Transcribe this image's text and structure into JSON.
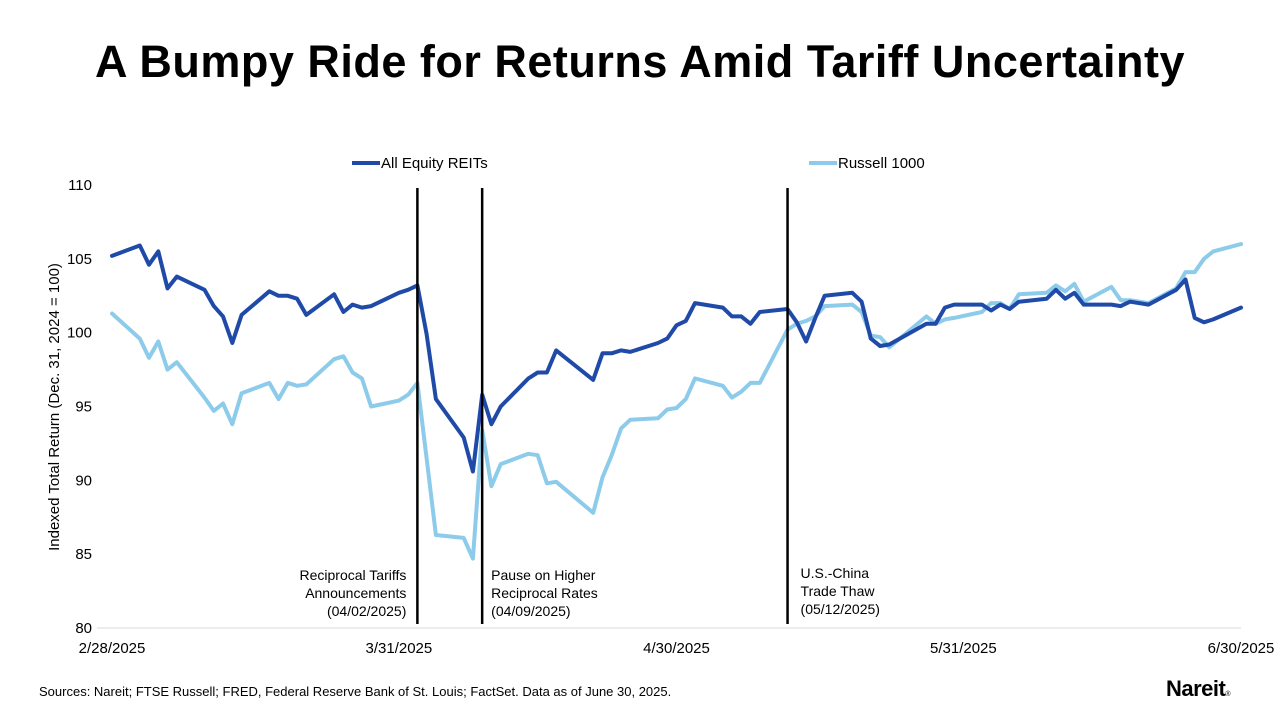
{
  "chart_data": {
    "type": "line",
    "title": "A Bumpy Ride for Returns Amid Tariff Uncertainty",
    "ylabel": "Indexed Total Return (Dec. 31, 2024 = 100)",
    "xlabel": "",
    "ylim": [
      80,
      110
    ],
    "yticks": [
      80,
      85,
      90,
      95,
      100,
      105,
      110
    ],
    "xlim": [
      "2025-02-28",
      "2025-06-30"
    ],
    "xticks": [
      {
        "date": "2025-02-28",
        "label": "2/28/2025"
      },
      {
        "date": "2025-03-31",
        "label": "3/31/2025"
      },
      {
        "date": "2025-04-30",
        "label": "4/30/2025"
      },
      {
        "date": "2025-05-31",
        "label": "5/31/2025"
      },
      {
        "date": "2025-06-30",
        "label": "6/30/2025"
      }
    ],
    "legend_position": "top",
    "grid": false,
    "series": [
      {
        "name": "All Equity REITs",
        "color": "#1f4aa8",
        "points": [
          [
            "2025-02-28",
            105.2
          ],
          [
            "2025-03-03",
            105.9
          ],
          [
            "2025-03-04",
            104.6
          ],
          [
            "2025-03-05",
            105.5
          ],
          [
            "2025-03-06",
            103.0
          ],
          [
            "2025-03-07",
            103.8
          ],
          [
            "2025-03-10",
            102.9
          ],
          [
            "2025-03-11",
            101.8
          ],
          [
            "2025-03-12",
            101.1
          ],
          [
            "2025-03-13",
            99.3
          ],
          [
            "2025-03-14",
            101.2
          ],
          [
            "2025-03-17",
            102.8
          ],
          [
            "2025-03-18",
            102.5
          ],
          [
            "2025-03-19",
            102.5
          ],
          [
            "2025-03-20",
            102.3
          ],
          [
            "2025-03-21",
            101.2
          ],
          [
            "2025-03-24",
            102.6
          ],
          [
            "2025-03-25",
            101.4
          ],
          [
            "2025-03-26",
            101.9
          ],
          [
            "2025-03-27",
            101.7
          ],
          [
            "2025-03-28",
            101.8
          ],
          [
            "2025-03-31",
            102.7
          ],
          [
            "2025-04-01",
            102.9
          ],
          [
            "2025-04-02",
            103.2
          ],
          [
            "2025-04-03",
            99.9
          ],
          [
            "2025-04-04",
            95.5
          ],
          [
            "2025-04-07",
            92.9
          ],
          [
            "2025-04-08",
            90.6
          ],
          [
            "2025-04-09",
            95.8
          ],
          [
            "2025-04-10",
            93.8
          ],
          [
            "2025-04-11",
            95.0
          ],
          [
            "2025-04-14",
            96.9
          ],
          [
            "2025-04-15",
            97.3
          ],
          [
            "2025-04-16",
            97.3
          ],
          [
            "2025-04-17",
            98.8
          ],
          [
            "2025-04-21",
            96.8
          ],
          [
            "2025-04-22",
            98.6
          ],
          [
            "2025-04-23",
            98.6
          ],
          [
            "2025-04-24",
            98.8
          ],
          [
            "2025-04-25",
            98.7
          ],
          [
            "2025-04-28",
            99.3
          ],
          [
            "2025-04-29",
            99.6
          ],
          [
            "2025-04-30",
            100.5
          ],
          [
            "2025-05-01",
            100.8
          ],
          [
            "2025-05-02",
            102.0
          ],
          [
            "2025-05-05",
            101.7
          ],
          [
            "2025-05-06",
            101.1
          ],
          [
            "2025-05-07",
            101.1
          ],
          [
            "2025-05-08",
            100.6
          ],
          [
            "2025-05-09",
            101.4
          ],
          [
            "2025-05-12",
            101.6
          ],
          [
            "2025-05-13",
            100.7
          ],
          [
            "2025-05-14",
            99.4
          ],
          [
            "2025-05-15",
            101.0
          ],
          [
            "2025-05-16",
            102.5
          ],
          [
            "2025-05-19",
            102.7
          ],
          [
            "2025-05-20",
            102.1
          ],
          [
            "2025-05-21",
            99.6
          ],
          [
            "2025-05-22",
            99.1
          ],
          [
            "2025-05-23",
            99.2
          ],
          [
            "2025-05-27",
            100.6
          ],
          [
            "2025-05-28",
            100.6
          ],
          [
            "2025-05-29",
            101.7
          ],
          [
            "2025-05-30",
            101.9
          ],
          [
            "2025-06-02",
            101.9
          ],
          [
            "2025-06-03",
            101.5
          ],
          [
            "2025-06-04",
            101.9
          ],
          [
            "2025-06-05",
            101.6
          ],
          [
            "2025-06-06",
            102.1
          ],
          [
            "2025-06-09",
            102.3
          ],
          [
            "2025-06-10",
            102.9
          ],
          [
            "2025-06-11",
            102.3
          ],
          [
            "2025-06-12",
            102.7
          ],
          [
            "2025-06-13",
            101.9
          ],
          [
            "2025-06-16",
            101.9
          ],
          [
            "2025-06-17",
            101.8
          ],
          [
            "2025-06-18",
            102.1
          ],
          [
            "2025-06-20",
            101.9
          ],
          [
            "2025-06-23",
            102.9
          ],
          [
            "2025-06-24",
            103.6
          ],
          [
            "2025-06-25",
            101.0
          ],
          [
            "2025-06-26",
            100.7
          ],
          [
            "2025-06-27",
            100.9
          ],
          [
            "2025-06-30",
            101.7
          ]
        ]
      },
      {
        "name": "Russell 1000",
        "color": "#8dcbea",
        "points": [
          [
            "2025-02-28",
            101.3
          ],
          [
            "2025-03-03",
            99.6
          ],
          [
            "2025-03-04",
            98.3
          ],
          [
            "2025-03-05",
            99.4
          ],
          [
            "2025-03-06",
            97.5
          ],
          [
            "2025-03-07",
            98.0
          ],
          [
            "2025-03-10",
            95.6
          ],
          [
            "2025-03-11",
            94.7
          ],
          [
            "2025-03-12",
            95.2
          ],
          [
            "2025-03-13",
            93.8
          ],
          [
            "2025-03-14",
            95.9
          ],
          [
            "2025-03-17",
            96.6
          ],
          [
            "2025-03-18",
            95.5
          ],
          [
            "2025-03-19",
            96.6
          ],
          [
            "2025-03-20",
            96.4
          ],
          [
            "2025-03-21",
            96.5
          ],
          [
            "2025-03-24",
            98.2
          ],
          [
            "2025-03-25",
            98.4
          ],
          [
            "2025-03-26",
            97.3
          ],
          [
            "2025-03-27",
            96.9
          ],
          [
            "2025-03-28",
            95.0
          ],
          [
            "2025-03-31",
            95.4
          ],
          [
            "2025-04-01",
            95.8
          ],
          [
            "2025-04-02",
            96.6
          ],
          [
            "2025-04-03",
            91.5
          ],
          [
            "2025-04-04",
            86.3
          ],
          [
            "2025-04-07",
            86.1
          ],
          [
            "2025-04-08",
            84.7
          ],
          [
            "2025-04-09",
            93.4
          ],
          [
            "2025-04-10",
            89.6
          ],
          [
            "2025-04-11",
            91.1
          ],
          [
            "2025-04-14",
            91.8
          ],
          [
            "2025-04-15",
            91.7
          ],
          [
            "2025-04-16",
            89.8
          ],
          [
            "2025-04-17",
            89.9
          ],
          [
            "2025-04-21",
            87.8
          ],
          [
            "2025-04-22",
            90.2
          ],
          [
            "2025-04-23",
            91.7
          ],
          [
            "2025-04-24",
            93.5
          ],
          [
            "2025-04-25",
            94.1
          ],
          [
            "2025-04-28",
            94.2
          ],
          [
            "2025-04-29",
            94.8
          ],
          [
            "2025-04-30",
            94.9
          ],
          [
            "2025-05-01",
            95.5
          ],
          [
            "2025-05-02",
            96.9
          ],
          [
            "2025-05-05",
            96.4
          ],
          [
            "2025-05-06",
            95.6
          ],
          [
            "2025-05-07",
            96.0
          ],
          [
            "2025-05-08",
            96.6
          ],
          [
            "2025-05-09",
            96.6
          ],
          [
            "2025-05-12",
            100.2
          ],
          [
            "2025-05-13",
            100.6
          ],
          [
            "2025-05-14",
            100.8
          ],
          [
            "2025-05-15",
            101.1
          ],
          [
            "2025-05-16",
            101.8
          ],
          [
            "2025-05-19",
            101.9
          ],
          [
            "2025-05-20",
            101.4
          ],
          [
            "2025-05-21",
            99.8
          ],
          [
            "2025-05-22",
            99.7
          ],
          [
            "2025-05-23",
            99.0
          ],
          [
            "2025-05-27",
            101.1
          ],
          [
            "2025-05-28",
            100.6
          ],
          [
            "2025-05-29",
            100.9
          ],
          [
            "2025-05-30",
            101.0
          ],
          [
            "2025-06-02",
            101.4
          ],
          [
            "2025-06-03",
            102.0
          ],
          [
            "2025-06-04",
            102.0
          ],
          [
            "2025-06-05",
            101.6
          ],
          [
            "2025-06-06",
            102.6
          ],
          [
            "2025-06-09",
            102.7
          ],
          [
            "2025-06-10",
            103.2
          ],
          [
            "2025-06-11",
            102.8
          ],
          [
            "2025-06-12",
            103.3
          ],
          [
            "2025-06-13",
            102.1
          ],
          [
            "2025-06-16",
            103.1
          ],
          [
            "2025-06-17",
            102.2
          ],
          [
            "2025-06-18",
            102.2
          ],
          [
            "2025-06-20",
            102.0
          ],
          [
            "2025-06-23",
            103.0
          ],
          [
            "2025-06-24",
            104.1
          ],
          [
            "2025-06-25",
            104.1
          ],
          [
            "2025-06-26",
            105.0
          ],
          [
            "2025-06-27",
            105.5
          ],
          [
            "2025-06-30",
            106.0
          ]
        ]
      }
    ],
    "event_lines": [
      {
        "date": "2025-04-02",
        "label_lines": [
          "Reciprocal Tariffs",
          "Announcements",
          "(04/02/2025)"
        ],
        "align": "right"
      },
      {
        "date": "2025-04-09",
        "label_lines": [
          "Pause on Higher",
          "Reciprocal Rates",
          "(04/09/2025)"
        ],
        "align": "left"
      },
      {
        "date": "2025-05-12",
        "label_lines": [
          "U.S.-China",
          "Trade Thaw",
          "(05/12/2025)"
        ],
        "align": "left"
      }
    ]
  },
  "footer": {
    "source": "Sources: Nareit; FTSE Russell; FRED, Federal Reserve Bank of St. Louis; FactSet. Data as of June 30, 2025.",
    "logo_text": "Nareit",
    "logo_mark": "®"
  }
}
